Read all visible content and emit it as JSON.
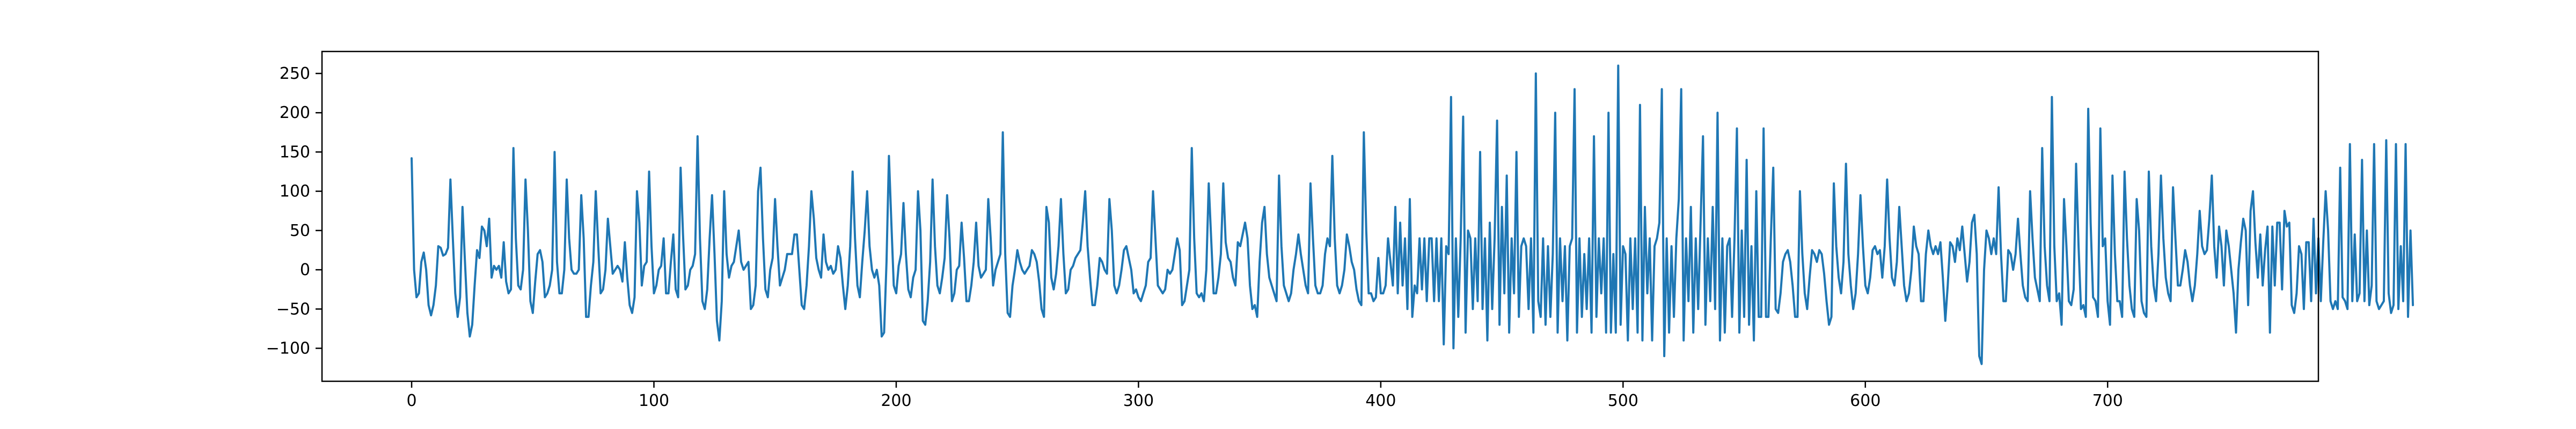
{
  "chart_data": {
    "type": "line",
    "title": "",
    "xlabel": "",
    "ylabel": "",
    "xlim": [
      -37,
      787
    ],
    "ylim": [
      -142,
      278
    ],
    "x_ticks": [
      0,
      100,
      200,
      300,
      400,
      500,
      600,
      700
    ],
    "x_tick_labels": [
      "0",
      "100",
      "200",
      "300",
      "400",
      "500",
      "600",
      "700"
    ],
    "y_ticks": [
      -100,
      -50,
      0,
      50,
      100,
      150,
      200,
      250
    ],
    "y_tick_labels": [
      "−100",
      "−50",
      "0",
      "50",
      "100",
      "150",
      "200",
      "250"
    ],
    "grid": false,
    "legend": "none",
    "series": [
      {
        "color": "#1f77b4",
        "x_start": 0,
        "x_step": 1,
        "values": [
          142,
          0,
          -35,
          -30,
          10,
          22,
          0,
          -45,
          -58,
          -45,
          -20,
          30,
          28,
          18,
          20,
          28,
          115,
          40,
          -30,
          -60,
          -35,
          80,
          10,
          -55,
          -85,
          -70,
          -20,
          25,
          15,
          55,
          50,
          30,
          65,
          -10,
          5,
          0,
          5,
          -10,
          35,
          -15,
          -30,
          -25,
          155,
          40,
          -20,
          -25,
          0,
          115,
          50,
          -40,
          -55,
          -15,
          20,
          25,
          10,
          -35,
          -30,
          -20,
          0,
          150,
          10,
          -30,
          -30,
          0,
          115,
          40,
          0,
          -5,
          -5,
          0,
          95,
          40,
          -60,
          -60,
          -20,
          10,
          100,
          30,
          -30,
          -25,
          0,
          65,
          30,
          -5,
          0,
          5,
          0,
          -15,
          35,
          -10,
          -45,
          -55,
          -35,
          100,
          60,
          -20,
          5,
          10,
          125,
          30,
          -30,
          -20,
          0,
          5,
          40,
          -30,
          -30,
          10,
          45,
          -25,
          -35,
          130,
          45,
          -25,
          -20,
          0,
          5,
          20,
          170,
          40,
          -40,
          -50,
          -25,
          40,
          95,
          20,
          -65,
          -90,
          -40,
          100,
          20,
          -10,
          5,
          10,
          30,
          50,
          10,
          0,
          5,
          10,
          -50,
          -45,
          -20,
          100,
          130,
          40,
          -25,
          -35,
          0,
          15,
          90,
          30,
          -20,
          -10,
          0,
          20,
          20,
          20,
          45,
          45,
          0,
          -45,
          -50,
          -20,
          30,
          100,
          65,
          15,
          0,
          -10,
          45,
          10,
          0,
          5,
          -5,
          0,
          30,
          15,
          -20,
          -50,
          -20,
          30,
          125,
          40,
          -20,
          -35,
          10,
          50,
          100,
          30,
          0,
          -10,
          0,
          -20,
          -85,
          -80,
          10,
          145,
          60,
          -20,
          -30,
          5,
          20,
          85,
          20,
          -25,
          -35,
          -10,
          0,
          100,
          50,
          -65,
          -70,
          -40,
          10,
          115,
          30,
          -20,
          -30,
          -10,
          15,
          95,
          40,
          -40,
          -30,
          0,
          5,
          60,
          15,
          -40,
          -40,
          -20,
          10,
          60,
          5,
          -10,
          -5,
          0,
          90,
          40,
          -20,
          0,
          10,
          20,
          175,
          20,
          -55,
          -60,
          -20,
          0,
          25,
          10,
          0,
          -5,
          0,
          5,
          25,
          20,
          10,
          -15,
          -50,
          -60,
          80,
          60,
          -10,
          -25,
          -5,
          30,
          90,
          20,
          -30,
          -25,
          0,
          5,
          15,
          20,
          25,
          60,
          100,
          30,
          -10,
          -45,
          -45,
          -20,
          15,
          10,
          0,
          -5,
          90,
          50,
          -20,
          -30,
          -20,
          0,
          25,
          30,
          15,
          0,
          -30,
          -25,
          -35,
          -40,
          -30,
          -20,
          10,
          15,
          100,
          40,
          -20,
          -25,
          -30,
          -25,
          0,
          -5,
          0,
          20,
          40,
          25,
          -45,
          -40,
          -20,
          0,
          155,
          40,
          -30,
          -35,
          -30,
          -40,
          0,
          110,
          40,
          -30,
          -30,
          -10,
          20,
          110,
          35,
          15,
          10,
          -10,
          -20,
          35,
          30,
          45,
          60,
          40,
          -20,
          -50,
          -45,
          -60,
          10,
          60,
          80,
          20,
          -10,
          -20,
          -30,
          -40,
          120,
          30,
          -20,
          -30,
          -40,
          -30,
          0,
          20,
          45,
          20,
          0,
          -20,
          -30,
          110,
          40,
          -20,
          -30,
          -30,
          -20,
          20,
          40,
          30,
          145,
          40,
          -20,
          -30,
          -20,
          0,
          45,
          30,
          10,
          0,
          -25,
          -40,
          -45,
          175,
          50,
          -30,
          -30,
          -40,
          -35,
          15,
          -30,
          -30,
          -20,
          40,
          10,
          -20,
          80,
          -30,
          60,
          -20,
          40,
          -50,
          90,
          -60,
          -20,
          -30,
          40,
          -25,
          40,
          -40,
          40,
          40,
          -40,
          40,
          -40,
          40,
          -95,
          30,
          20,
          220,
          -100,
          40,
          -60,
          40,
          195,
          -80,
          50,
          40,
          -50,
          40,
          -40,
          150,
          -50,
          40,
          -90,
          60,
          -50,
          40,
          190,
          -70,
          80,
          -30,
          120,
          -80,
          40,
          -30,
          150,
          -60,
          30,
          40,
          30,
          -50,
          40,
          -80,
          250,
          -40,
          -60,
          40,
          -70,
          30,
          -60,
          20,
          200,
          -80,
          40,
          -40,
          30,
          -90,
          30,
          40,
          230,
          -80,
          40,
          -60,
          20,
          -50,
          40,
          -80,
          170,
          -60,
          40,
          -30,
          40,
          -80,
          200,
          -80,
          20,
          -80,
          260,
          -70,
          30,
          20,
          -90,
          40,
          -50,
          40,
          -80,
          210,
          -90,
          80,
          -30,
          40,
          -90,
          30,
          40,
          60,
          230,
          -110,
          40,
          -80,
          30,
          -60,
          40,
          90,
          230,
          -90,
          40,
          -40,
          80,
          -80,
          40,
          -50,
          60,
          170,
          -70,
          40,
          -40,
          80,
          -50,
          200,
          -90,
          40,
          -80,
          30,
          40,
          -60,
          40,
          180,
          -80,
          50,
          -60,
          140,
          -70,
          30,
          -90,
          100,
          -60,
          -60,
          180,
          -60,
          -60,
          40,
          130,
          -50,
          -55,
          -30,
          10,
          20,
          25,
          10,
          -20,
          -60,
          -60,
          100,
          20,
          -30,
          -50,
          -10,
          25,
          20,
          10,
          25,
          20,
          -5,
          -40,
          -70,
          -60,
          110,
          30,
          -10,
          -30,
          10,
          135,
          20,
          -20,
          -50,
          -30,
          20,
          95,
          30,
          -20,
          -30,
          -10,
          25,
          30,
          20,
          25,
          -10,
          30,
          115,
          40,
          -10,
          -20,
          10,
          80,
          30,
          -20,
          -40,
          -30,
          0,
          55,
          30,
          20,
          -40,
          -40,
          20,
          50,
          30,
          20,
          30,
          20,
          35,
          -10,
          -65,
          -20,
          35,
          30,
          10,
          40,
          25,
          55,
          20,
          -15,
          10,
          60,
          70,
          20,
          -110,
          -120,
          0,
          50,
          40,
          20,
          40,
          20,
          105,
          20,
          -40,
          -40,
          25,
          20,
          0,
          20,
          65,
          20,
          -20,
          -35,
          -40,
          100,
          40,
          -10,
          -25,
          -40,
          155,
          30,
          -20,
          -40,
          220,
          30,
          -40,
          -30,
          -70,
          90,
          30,
          -40,
          -45,
          -25,
          135,
          30,
          -50,
          -45,
          -60,
          205,
          60,
          -35,
          -40,
          -60,
          180,
          30,
          40,
          -40,
          -70,
          120,
          20,
          -40,
          -40,
          -60,
          125,
          40,
          -20,
          -50,
          -60,
          90,
          50,
          -40,
          -55,
          -60,
          125,
          30,
          -20,
          -40,
          20,
          120,
          40,
          -10,
          -30,
          -40,
          105,
          40,
          -20,
          -20,
          0,
          25,
          10,
          -20,
          -40,
          -20,
          20,
          75,
          30,
          20,
          25,
          65,
          120,
          30,
          -10,
          55,
          30,
          -20,
          50,
          30,
          0,
          -30,
          -80,
          0,
          35,
          65,
          50,
          -45,
          75,
          100,
          35,
          -10,
          45,
          -20,
          25,
          55,
          -80,
          55,
          -20,
          60,
          60,
          -25,
          75,
          55,
          60,
          -45,
          -55,
          -30,
          30,
          20,
          -50,
          35,
          35,
          -40,
          65,
          -30,
          40,
          -40,
          35,
          100,
          50,
          -40,
          -50,
          -40,
          -50,
          130,
          -35,
          -40,
          -50,
          160,
          -40,
          45,
          -40,
          -30,
          140,
          -40,
          50,
          -45,
          -20,
          160,
          -40,
          -50,
          -45,
          -40,
          165,
          -30,
          -55,
          -45,
          160,
          -50,
          30,
          -40,
          160,
          -60,
          50,
          -45
        ]
      }
    ]
  }
}
